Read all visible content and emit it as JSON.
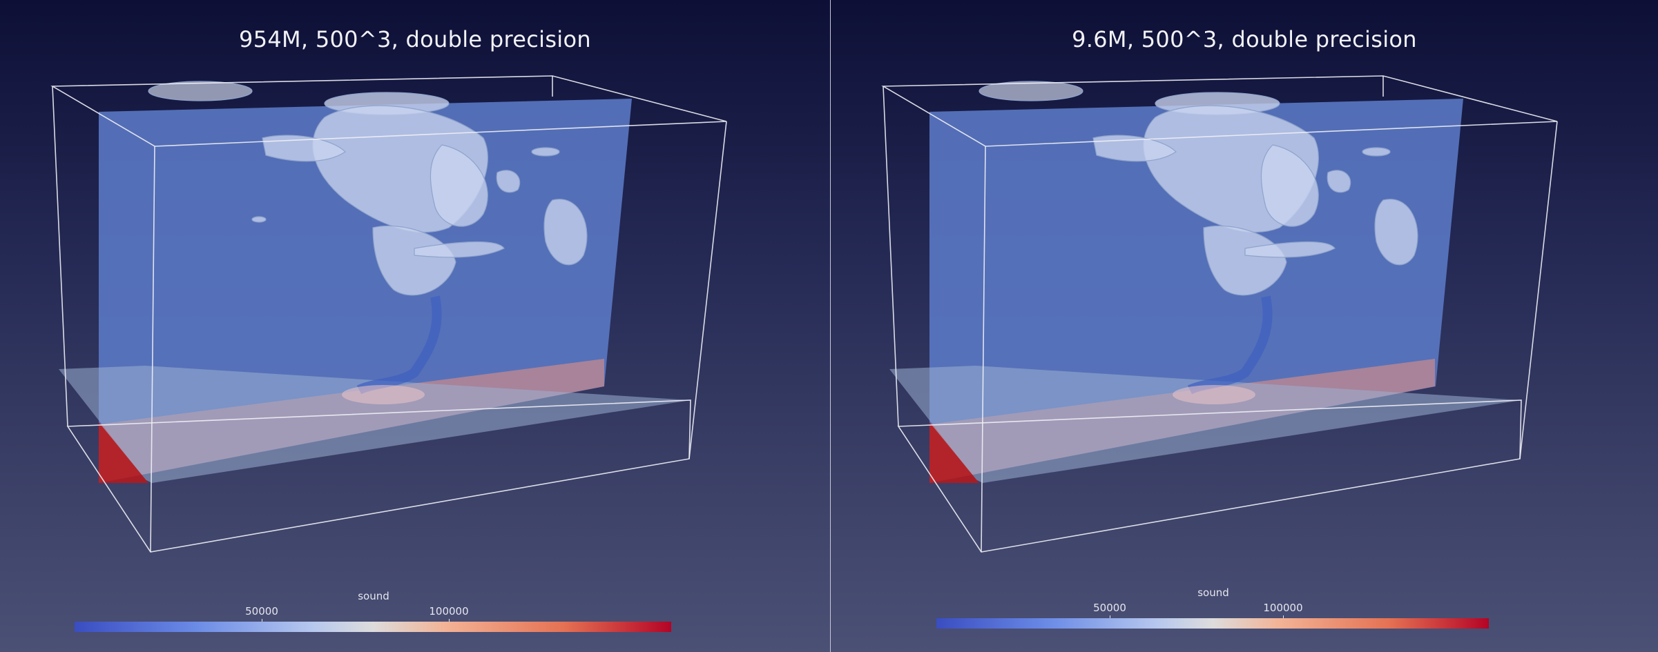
{
  "views": [
    {
      "title": "954M, 500^3, double precision",
      "colorbar": {
        "title": "sound",
        "ticks": [
          "50000",
          "100000"
        ]
      }
    },
    {
      "title": "9.6M, 500^3, double precision",
      "colorbar": {
        "title": "sound",
        "ticks": [
          "50000",
          "100000"
        ]
      }
    }
  ],
  "colors": {
    "background_top": "#0d0f36",
    "background_bottom": "#4b5075",
    "slice_blue": "#5a79c8",
    "slice_red": "#c0393a",
    "outline": "#ffffff",
    "colormap_low": "#3a4dc1",
    "colormap_mid": "#dddcdc",
    "colormap_high": "#b40426"
  }
}
